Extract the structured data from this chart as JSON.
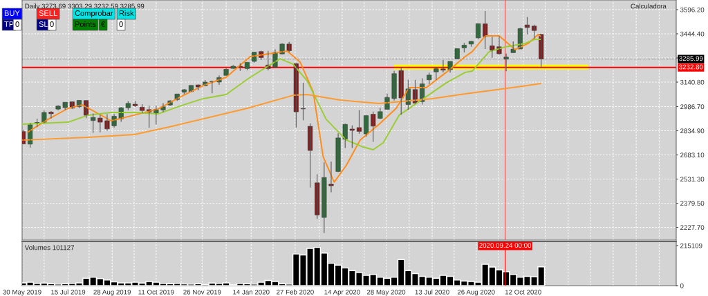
{
  "chart_data": [
    {
      "type": "candlestick",
      "title": "Daily 3273.69 3303.29 3232.59 3285.99",
      "x": [
        "2019-05-31",
        "2019-06-07",
        "2019-06-14",
        "2019-06-21",
        "2019-06-28",
        "2019-07-05",
        "2019-07-12",
        "2019-07-19",
        "2019-07-26",
        "2019-08-02",
        "2019-08-09",
        "2019-08-16",
        "2019-08-23",
        "2019-08-30",
        "2019-09-06",
        "2019-09-13",
        "2019-09-20",
        "2019-09-27",
        "2019-10-04",
        "2019-10-11",
        "2019-10-18",
        "2019-10-25",
        "2019-11-01",
        "2019-11-08",
        "2019-11-15",
        "2019-11-22",
        "2019-11-29",
        "2019-12-06",
        "2019-12-13",
        "2019-12-20",
        "2019-12-27",
        "2020-01-03",
        "2020-01-10",
        "2020-01-17",
        "2020-01-24",
        "2020-01-31",
        "2020-02-07",
        "2020-02-14",
        "2020-02-21",
        "2020-02-28",
        "2020-03-06",
        "2020-03-13",
        "2020-03-20",
        "2020-03-27",
        "2020-04-03",
        "2020-04-10",
        "2020-04-17",
        "2020-04-24",
        "2020-05-01",
        "2020-05-08",
        "2020-05-15",
        "2020-05-22",
        "2020-05-29",
        "2020-06-05",
        "2020-06-12",
        "2020-06-19",
        "2020-06-26",
        "2020-07-03",
        "2020-07-10",
        "2020-07-17",
        "2020-07-24",
        "2020-07-31",
        "2020-08-07",
        "2020-08-14",
        "2020-08-21",
        "2020-08-28",
        "2020-09-04",
        "2020-09-11",
        "2020-09-18",
        "2020-09-25",
        "2020-10-02",
        "2020-10-09",
        "2020-10-16",
        "2020-10-23",
        "2020-10-30"
      ],
      "ohlc": [
        [
          2830,
          2841,
          2750,
          2752
        ],
        [
          2751,
          2884,
          2729,
          2873
        ],
        [
          2885,
          2911,
          2858,
          2887
        ],
        [
          2887,
          2964,
          2884,
          2950
        ],
        [
          2952,
          2959,
          2912,
          2942
        ],
        [
          2971,
          2996,
          2963,
          2990
        ],
        [
          2981,
          3014,
          2966,
          3014
        ],
        [
          3017,
          3018,
          2973,
          2977
        ],
        [
          2986,
          3028,
          2977,
          3026
        ],
        [
          3025,
          3028,
          2914,
          2932
        ],
        [
          2899,
          2943,
          2822,
          2919
        ],
        [
          2915,
          2936,
          2825,
          2889
        ],
        [
          2898,
          2939,
          2835,
          2847
        ],
        [
          2866,
          2940,
          2856,
          2926
        ],
        [
          2910,
          2985,
          2891,
          2979
        ],
        [
          2980,
          3021,
          2964,
          3007
        ],
        [
          3002,
          3022,
          2985,
          2992
        ],
        [
          2983,
          3002,
          2946,
          2962
        ],
        [
          2968,
          2993,
          2855,
          2952
        ],
        [
          2944,
          2993,
          2874,
          2970
        ],
        [
          2966,
          3008,
          2952,
          2986
        ],
        [
          2997,
          3027,
          2990,
          3023
        ],
        [
          3031,
          3066,
          3023,
          3066
        ],
        [
          3078,
          3097,
          3065,
          3093
        ],
        [
          3081,
          3120,
          3080,
          3120
        ],
        [
          3123,
          3127,
          3090,
          3110
        ],
        [
          3117,
          3154,
          3115,
          3141
        ],
        [
          3143,
          3150,
          3070,
          3146
        ],
        [
          3141,
          3183,
          3123,
          3169
        ],
        [
          3183,
          3226,
          3183,
          3221
        ],
        [
          3227,
          3248,
          3224,
          3240
        ],
        [
          3240,
          3259,
          3211,
          3235
        ],
        [
          3226,
          3267,
          3215,
          3265
        ],
        [
          3271,
          3329,
          3263,
          3329
        ],
        [
          3333,
          3338,
          3281,
          3295
        ],
        [
          3248,
          3337,
          3214,
          3226
        ],
        [
          3235,
          3347,
          3234,
          3328
        ],
        [
          3318,
          3385,
          3315,
          3380
        ],
        [
          3380,
          3393,
          3328,
          3338
        ],
        [
          3257,
          3260,
          2856,
          2954
        ],
        [
          2975,
          3137,
          2901,
          2972
        ],
        [
          2863,
          2882,
          2478,
          2711
        ],
        [
          2508,
          2562,
          2281,
          2305
        ],
        [
          2290,
          2637,
          2192,
          2541
        ],
        [
          2499,
          2641,
          2448,
          2489
        ],
        [
          2579,
          2819,
          2575,
          2790
        ],
        [
          2782,
          2880,
          2727,
          2875
        ],
        [
          2846,
          2869,
          2727,
          2837
        ],
        [
          2855,
          2965,
          2816,
          2831
        ],
        [
          2815,
          2934,
          2798,
          2930
        ],
        [
          2939,
          2955,
          2766,
          2864
        ],
        [
          2913,
          2980,
          2910,
          2955
        ],
        [
          2970,
          3068,
          2969,
          3044
        ],
        [
          3038,
          3211,
          3025,
          3194
        ],
        [
          3213,
          3233,
          2936,
          3041
        ],
        [
          3000,
          3156,
          2966,
          3098
        ],
        [
          3094,
          3155,
          3004,
          3009
        ],
        [
          3018,
          3165,
          3000,
          3130
        ],
        [
          3155,
          3200,
          3128,
          3185
        ],
        [
          3205,
          3237,
          3155,
          3225
        ],
        [
          3224,
          3280,
          3201,
          3216
        ],
        [
          3219,
          3272,
          3200,
          3271
        ],
        [
          3288,
          3352,
          3284,
          3351
        ],
        [
          3356,
          3387,
          3327,
          3373
        ],
        [
          3380,
          3399,
          3363,
          3397
        ],
        [
          3419,
          3509,
          3410,
          3508
        ],
        [
          3507,
          3588,
          3349,
          3427
        ],
        [
          3369,
          3426,
          3293,
          3341
        ],
        [
          3363,
          3429,
          3313,
          3319
        ],
        [
          3285,
          3320,
          3209,
          3298
        ],
        [
          3326,
          3397,
          3324,
          3348
        ],
        [
          3349,
          3482,
          3349,
          3477
        ],
        [
          3500,
          3550,
          3441,
          3484
        ],
        [
          3493,
          3502,
          3415,
          3465
        ],
        [
          3441,
          3441,
          3232.6,
          3286
        ]
      ],
      "colors": [
        "#8b1a1a",
        "#2b6e3a",
        "#2b6e3a",
        "#2b6e3a",
        "#8b1a1a",
        "#2b6e3a",
        "#2b6e3a",
        "#8b1a1a",
        "#2b6e3a",
        "#8b1a1a",
        "#2b6e3a",
        "#8b1a1a",
        "#8b1a1a",
        "#2b6e3a",
        "#2b6e3a",
        "#2b6e3a",
        "#8b1a1a",
        "#8b1a1a",
        "#8b1a1a",
        "#2b6e3a",
        "#2b6e3a",
        "#2b6e3a",
        "#2b6e3a",
        "#2b6e3a",
        "#2b6e3a",
        "#8b1a1a",
        "#2b6e3a",
        "#2b6e3a",
        "#2b6e3a",
        "#2b6e3a",
        "#2b6e3a",
        "#8b1a1a",
        "#2b6e3a",
        "#2b6e3a",
        "#8b1a1a",
        "#8b1a1a",
        "#2b6e3a",
        "#2b6e3a",
        "#8b1a1a",
        "#8b1a1a",
        "#8b1a1a",
        "#8b1a1a",
        "#8b1a1a",
        "#2b6e3a",
        "#8b1a1a",
        "#2b6e3a",
        "#2b6e3a",
        "#8b1a1a",
        "#8b1a1a",
        "#2b6e3a",
        "#8b1a1a",
        "#2b6e3a",
        "#2b6e3a",
        "#2b6e3a",
        "#8b1a1a",
        "#2b6e3a",
        "#8b1a1a",
        "#2b6e3a",
        "#2b6e3a",
        "#2b6e3a",
        "#8b1a1a",
        "#2b6e3a",
        "#2b6e3a",
        "#2b6e3a",
        "#2b6e3a",
        "#2b6e3a",
        "#8b1a1a",
        "#8b1a1a",
        "#8b1a1a",
        "#2b6e3a",
        "#2b6e3a",
        "#2b6e3a",
        "#8b1a1a",
        "#8b1a1a",
        "#8b1a1a"
      ],
      "series": [
        {
          "type": "line",
          "color": "#ff8c1a",
          "x": [
            "2019-06-04",
            "2019-06-25",
            "2019-07-15",
            "2019-07-29",
            "2019-08-27",
            "2019-09-19",
            "2019-10-13",
            "2019-11-05",
            "2019-11-27",
            "2019-12-20",
            "2020-01-13",
            "2020-02-19",
            "2020-03-03",
            "2020-03-16",
            "2020-03-26",
            "2020-04-06",
            "2020-04-18",
            "2020-05-02",
            "2020-05-21",
            "2020-06-07",
            "2020-06-20",
            "2020-07-07",
            "2020-07-27",
            "2020-08-15",
            "2020-08-22",
            "2020-09-04",
            "2020-09-18",
            "2020-10-04",
            "2020-10-17",
            "2020-10-27",
            "2020-10-30"
          ],
          "values": [
            2824,
            2907,
            2976,
            2998,
            2898,
            2933,
            2972,
            3050,
            3119,
            3171,
            3301,
            3336,
            3267,
            3080,
            2672,
            2512,
            2616,
            2777,
            2876,
            2976,
            3106,
            3106,
            3202,
            3301,
            3332,
            3431,
            3431,
            3345,
            3384,
            3440,
            3427
          ]
        },
        {
          "type": "line",
          "color": "#9acd32",
          "x": [
            "2019-05-30",
            "2019-07-15",
            "2019-08-04",
            "2019-08-27",
            "2019-09-19",
            "2019-10-13",
            "2019-11-05",
            "2019-11-27",
            "2019-12-20",
            "2020-01-10",
            "2020-01-23",
            "2020-02-12",
            "2020-02-25",
            "2020-03-10",
            "2020-03-29",
            "2020-04-18",
            "2020-05-05",
            "2020-05-15",
            "2020-05-25",
            "2020-06-10",
            "2020-06-30",
            "2020-07-27",
            "2020-08-15",
            "2020-08-22",
            "2020-09-08",
            "2020-09-24",
            "2020-10-14",
            "2020-10-24",
            "2020-10-30"
          ],
          "values": [
            2876,
            2889,
            2933,
            2950,
            2950,
            2941,
            2993,
            3037,
            3063,
            3158,
            3210,
            3288,
            3253,
            3149,
            2907,
            2777,
            2733,
            2716,
            2759,
            2933,
            3019,
            3136,
            3202,
            3210,
            3332,
            3362,
            3384,
            3410,
            3410
          ]
        },
        {
          "type": "line",
          "color": "#ff9a2e",
          "x": [
            "2019-05-30",
            "2019-08-04",
            "2019-09-19",
            "2019-10-27",
            "2020-01-10",
            "2020-02-25",
            "2020-03-10",
            "2020-04-12",
            "2020-05-21",
            "2020-07-13",
            "2020-08-15",
            "2020-10-01",
            "2020-10-30"
          ],
          "values": [
            2776,
            2794,
            2811,
            2863,
            2976,
            3058,
            3063,
            3028,
            3006,
            3037,
            3067,
            3106,
            3132
          ]
        },
        {
          "type": "line",
          "color": "#ffff00",
          "x": [
            "2020-06-05",
            "2020-12-16"
          ],
          "values": [
            3235,
            3235
          ]
        }
      ],
      "ref_lines": [
        {
          "axis": "y",
          "value": 3232.8,
          "label": "3232.80",
          "color": "#ff0000"
        },
        {
          "axis": "y",
          "value": 3285.99,
          "label": "3285.99",
          "color": "#000000",
          "line_style": "dotted"
        },
        {
          "axis": "x",
          "value": "2020-09-24",
          "color": "#e05050"
        }
      ],
      "annotations": [
        "BUY",
        "SELL",
        "Comprobar",
        "Risk",
        "TP",
        "0",
        "SL",
        "0",
        "Points",
        "€",
        "0",
        "Calculadora"
      ],
      "xlim": [
        "2019-05-30",
        "2021-03-14"
      ],
      "xticks": [
        {
          "value": "2019-05-30",
          "label": null
        },
        {
          "value": "2019-06-21",
          "label": null
        },
        {
          "value": "2019-07-15",
          "label": null
        },
        {
          "value": "2019-08-05",
          "label": null
        },
        {
          "value": "2019-08-28",
          "label": null
        },
        {
          "value": "2019-09-19",
          "label": null
        },
        {
          "value": "2019-10-11",
          "label": null
        },
        {
          "value": "2019-11-05",
          "label": null
        },
        {
          "value": "2019-11-26",
          "label": null
        },
        {
          "value": "2019-12-20",
          "label": null
        },
        {
          "value": "2020-01-14",
          "label": null
        },
        {
          "value": "2020-02-05",
          "label": null
        },
        {
          "value": "2020-02-27",
          "label": null
        },
        {
          "value": "2020-03-22",
          "label": null
        },
        {
          "value": "2020-04-14",
          "label": null
        },
        {
          "value": "2020-05-06",
          "label": null
        },
        {
          "value": "2020-05-28",
          "label": null
        },
        {
          "value": "2020-06-20",
          "label": null
        },
        {
          "value": "2020-07-13",
          "label": null
        },
        {
          "value": "2020-08-04",
          "label": null
        },
        {
          "value": "2020-08-26",
          "label": null
        },
        {
          "value": "2020-09-17",
          "label": null
        },
        {
          "value": "2020-10-12",
          "label": null
        },
        {
          "value": "2020-11-03",
          "label": null
        },
        {
          "value": "2020-11-26",
          "label": null
        },
        {
          "value": "2020-12-18",
          "label": null
        },
        {
          "value": "2021-01-10",
          "label": null
        },
        {
          "value": "2021-02-02",
          "label": null
        },
        {
          "value": "2021-02-25",
          "label": null
        }
      ],
      "ylim": [
        2147.6,
        3656.9
      ],
      "yticks": [
        {
          "value": 2227.7,
          "label": "2227.70"
        },
        {
          "value": 2379.5,
          "label": "2379.50"
        },
        {
          "value": 2531.3,
          "label": "2531.30"
        },
        {
          "value": 2683.1,
          "label": "2683.10"
        },
        {
          "value": 2834.9,
          "label": "2834.90"
        },
        {
          "value": 2986.7,
          "label": "2986.70"
        },
        {
          "value": 3140.8,
          "label": "3140.80"
        },
        {
          "value": 3292.6,
          "label": null
        },
        {
          "value": 3444.4,
          "label": "3444.40"
        },
        {
          "value": 3596.2,
          "label": "3596.20"
        }
      ],
      "grid": true,
      "tick_labels": "y"
    },
    {
      "type": "bar",
      "title": "Volumes 101127",
      "color": "#000000",
      "x": [
        "2019-05-31",
        "2019-06-07",
        "2019-06-14",
        "2019-06-21",
        "2019-06-28",
        "2019-07-05",
        "2019-07-12",
        "2019-07-19",
        "2019-07-26",
        "2019-08-02",
        "2019-08-09",
        "2019-08-16",
        "2019-08-23",
        "2019-08-30",
        "2019-09-06",
        "2019-09-13",
        "2019-09-20",
        "2019-09-27",
        "2019-10-04",
        "2019-10-11",
        "2019-10-18",
        "2019-10-25",
        "2019-11-01",
        "2019-11-08",
        "2019-11-15",
        "2019-11-22",
        "2019-11-29",
        "2019-12-06",
        "2019-12-13",
        "2019-12-20",
        "2019-12-27",
        "2020-01-03",
        "2020-01-10",
        "2020-01-17",
        "2020-01-24",
        "2020-01-31",
        "2020-02-07",
        "2020-02-14",
        "2020-02-21",
        "2020-02-28",
        "2020-03-06",
        "2020-03-13",
        "2020-03-20",
        "2020-03-27",
        "2020-04-03",
        "2020-04-10",
        "2020-04-17",
        "2020-04-24",
        "2020-05-01",
        "2020-05-08",
        "2020-05-15",
        "2020-05-22",
        "2020-05-29",
        "2020-06-05",
        "2020-06-12",
        "2020-06-19",
        "2020-06-26",
        "2020-07-03",
        "2020-07-10",
        "2020-07-17",
        "2020-07-24",
        "2020-07-31",
        "2020-08-07",
        "2020-08-14",
        "2020-08-21",
        "2020-08-28",
        "2020-09-04",
        "2020-09-11",
        "2020-09-18",
        "2020-09-25",
        "2020-10-02",
        "2020-10-09",
        "2020-10-16",
        "2020-10-23",
        "2020-10-30"
      ],
      "values": [
        15000,
        18000,
        12000,
        14000,
        10000,
        8000,
        10000,
        12000,
        15000,
        40000,
        45000,
        38000,
        30000,
        20000,
        15000,
        15000,
        18000,
        14000,
        22000,
        18000,
        12000,
        10000,
        12000,
        9000,
        8000,
        10000,
        6000,
        14000,
        12000,
        15000,
        5000,
        12000,
        10000,
        8000,
        18000,
        28000,
        22000,
        10000,
        8000,
        170000,
        165000,
        200000,
        205000,
        175000,
        120000,
        110000,
        95000,
        80000,
        70000,
        55000,
        60000,
        45000,
        40000,
        45000,
        140000,
        80000,
        65000,
        50000,
        45000,
        40000,
        55000,
        50000,
        30000,
        25000,
        22000,
        18000,
        115000,
        100000,
        85000,
        75000,
        60000,
        45000,
        50000,
        48000,
        101127
      ],
      "ref_lines": [
        {
          "axis": "x",
          "value": "2020-09-24",
          "label": "2020.09.24 00:00",
          "color": "#ff0000"
        }
      ],
      "xlim": [
        "2019-05-30",
        "2021-03-14"
      ],
      "xticks": [
        {
          "value": "2019-05-30",
          "label": "30 May 2019"
        },
        {
          "value": "2019-06-21",
          "label": null
        },
        {
          "value": "2019-07-15",
          "label": "15 Jul 2019"
        },
        {
          "value": "2019-08-05",
          "label": null
        },
        {
          "value": "2019-08-28",
          "label": "28 Aug 2019"
        },
        {
          "value": "2019-09-19",
          "label": null
        },
        {
          "value": "2019-10-11",
          "label": "11 Oct 2019"
        },
        {
          "value": "2019-11-05",
          "label": null
        },
        {
          "value": "2019-11-26",
          "label": "26 Nov 2019"
        },
        {
          "value": "2019-12-20",
          "label": null
        },
        {
          "value": "2020-01-14",
          "label": "14 Jan 2020"
        },
        {
          "value": "2020-02-05",
          "label": null
        },
        {
          "value": "2020-02-27",
          "label": "27 Feb 2020"
        },
        {
          "value": "2020-03-22",
          "label": null
        },
        {
          "value": "2020-04-14",
          "label": "14 Apr 2020"
        },
        {
          "value": "2020-05-06",
          "label": null
        },
        {
          "value": "2020-05-28",
          "label": "28 May 2020"
        },
        {
          "value": "2020-06-20",
          "label": null
        },
        {
          "value": "2020-07-13",
          "label": "13 Jul 2020"
        },
        {
          "value": "2020-08-04",
          "label": null
        },
        {
          "value": "2020-08-26",
          "label": "26 Aug 2020"
        },
        {
          "value": "2020-09-17",
          "label": null
        },
        {
          "value": "2020-10-12",
          "label": "12 Oct 2020"
        },
        {
          "value": "2020-11-03",
          "label": null
        },
        {
          "value": "2020-11-26",
          "label": null
        },
        {
          "value": "2020-12-18",
          "label": null
        },
        {
          "value": "2021-01-10",
          "label": null
        },
        {
          "value": "2021-02-02",
          "label": null
        },
        {
          "value": "2021-02-25",
          "label": null
        }
      ],
      "ylim": [
        0,
        237000
      ],
      "yticks": [
        0,
        215109
      ],
      "grid": "x"
    }
  ]
}
